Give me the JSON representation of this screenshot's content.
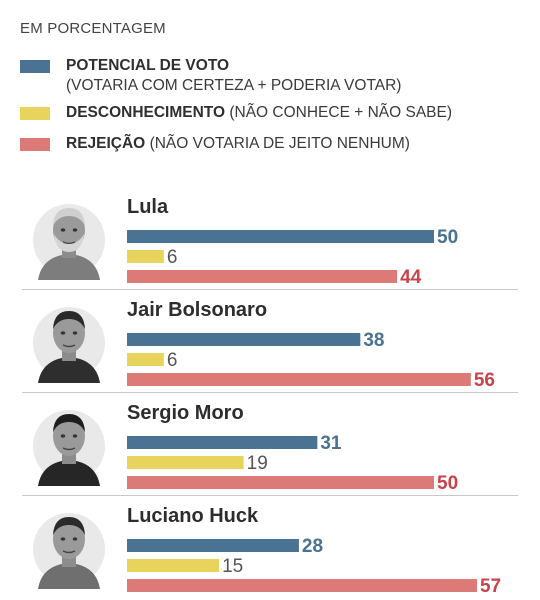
{
  "unit_label": "EM PORCENTAGEM",
  "legend": [
    {
      "title": "POTENCIAL DE VOTO",
      "detail": "(VOTARIA COM CERTEZA + PODERIA VOTAR)",
      "color": "#4a7292"
    },
    {
      "title": "DESCONHECIMENTO",
      "detail": "(NÃO CONHECE + NÃO SABE)",
      "color": "#e8d45c"
    },
    {
      "title": "REJEIÇÃO",
      "detail": "(NÃO VOTARIA DE JEITO NENHUM)",
      "color": "#dc7a78"
    }
  ],
  "colors": {
    "value_text_blue": "#4a7292",
    "value_text_gray": "#555555",
    "value_text_red": "#c8434a"
  },
  "chart_data": {
    "type": "bar",
    "orientation": "horizontal",
    "categories": [
      "Lula",
      "Jair Bolsonaro",
      "Sergio Moro",
      "Luciano Huck"
    ],
    "series": [
      {
        "name": "POTENCIAL DE VOTO",
        "values": [
          50,
          38,
          31,
          28
        ]
      },
      {
        "name": "DESCONHECIMENTO",
        "values": [
          6,
          6,
          19,
          15
        ]
      },
      {
        "name": "REJEIÇÃO",
        "values": [
          44,
          56,
          50,
          57
        ]
      }
    ],
    "title": "",
    "xlabel": "",
    "ylabel": "",
    "xlim": [
      0,
      57
    ],
    "grid": false,
    "legend_position": "top-left"
  }
}
